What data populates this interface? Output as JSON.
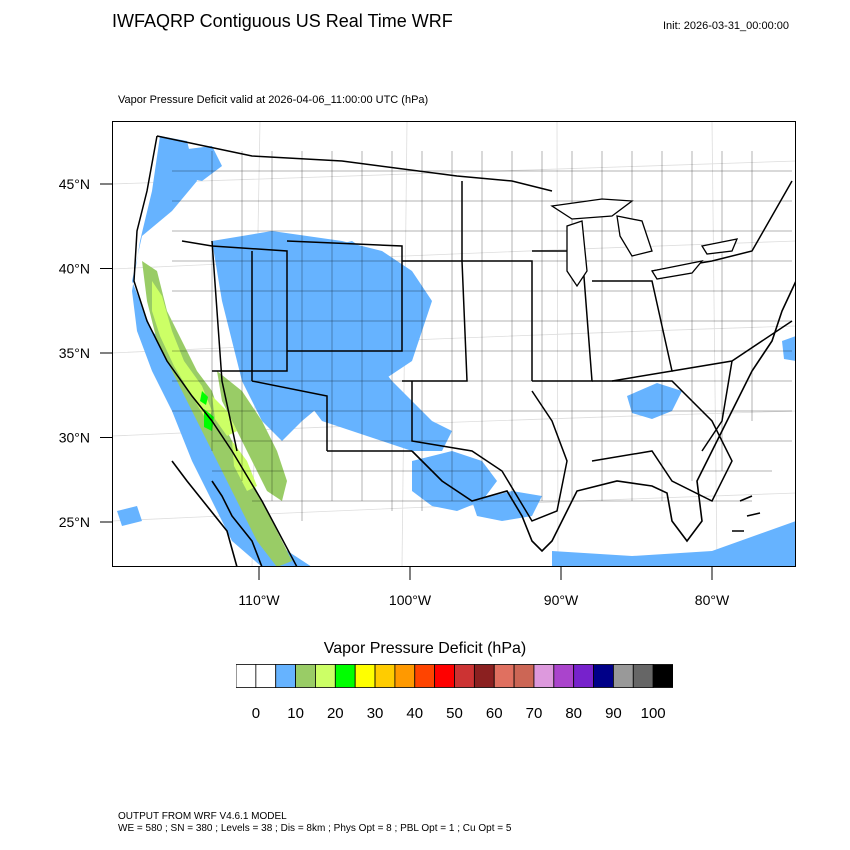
{
  "header": {
    "title": "IWFAQRP Contiguous US Real Time WRF",
    "init": "Init: 2026-03-31_00:00:00",
    "subtitle": "Vapor Pressure Deficit valid at 2026-04-06_11:00:00 UTC   (hPa)"
  },
  "map": {
    "lat_labels": [
      {
        "text": "45°N",
        "lat": 45
      },
      {
        "text": "40°N",
        "lat": 40
      },
      {
        "text": "35°N",
        "lat": 35
      },
      {
        "text": "30°N",
        "lat": 30
      },
      {
        "text": "25°N",
        "lat": 25
      }
    ],
    "lon_labels": [
      {
        "text": "110°W",
        "lon": -110
      },
      {
        "text": "100°W",
        "lon": -100
      },
      {
        "text": "90°W",
        "lon": -90
      },
      {
        "text": "80°W",
        "lon": -80
      }
    ],
    "colors": {
      "land": "#ffffff",
      "vpd_0_10": "#ffffff",
      "vpd_10_15": "#66b3ff",
      "vpd_15_20": "#99cc66",
      "vpd_20_25": "#ccff66",
      "vpd_25_30": "#00ff00",
      "ocean_low": "#66b3ff",
      "borders": "#000000"
    }
  },
  "legend": {
    "title": "Vapor Pressure Deficit  (hPa)",
    "colors": [
      "#ffffff",
      "#ffffff",
      "#66b3ff",
      "#99cc66",
      "#ccff66",
      "#00ff00",
      "#ffff00",
      "#ffcc00",
      "#ff9900",
      "#ff4400",
      "#ff0000",
      "#cc3333",
      "#8b2020",
      "#e07060",
      "#cc6655",
      "#dd99dd",
      "#aa44cc",
      "#7722cc",
      "#000088",
      "#999999",
      "#666666",
      "#000000"
    ],
    "ticks": [
      "0",
      "10",
      "20",
      "30",
      "40",
      "50",
      "60",
      "70",
      "80",
      "90",
      "100"
    ]
  },
  "footer": {
    "line1": "OUTPUT FROM WRF V4.6.1 MODEL",
    "line2": "WE = 580 ; SN = 380 ; Levels = 38 ; Dis = 8km ; Phys Opt = 8 ; PBL Opt = 1 ; Cu Opt = 5"
  }
}
